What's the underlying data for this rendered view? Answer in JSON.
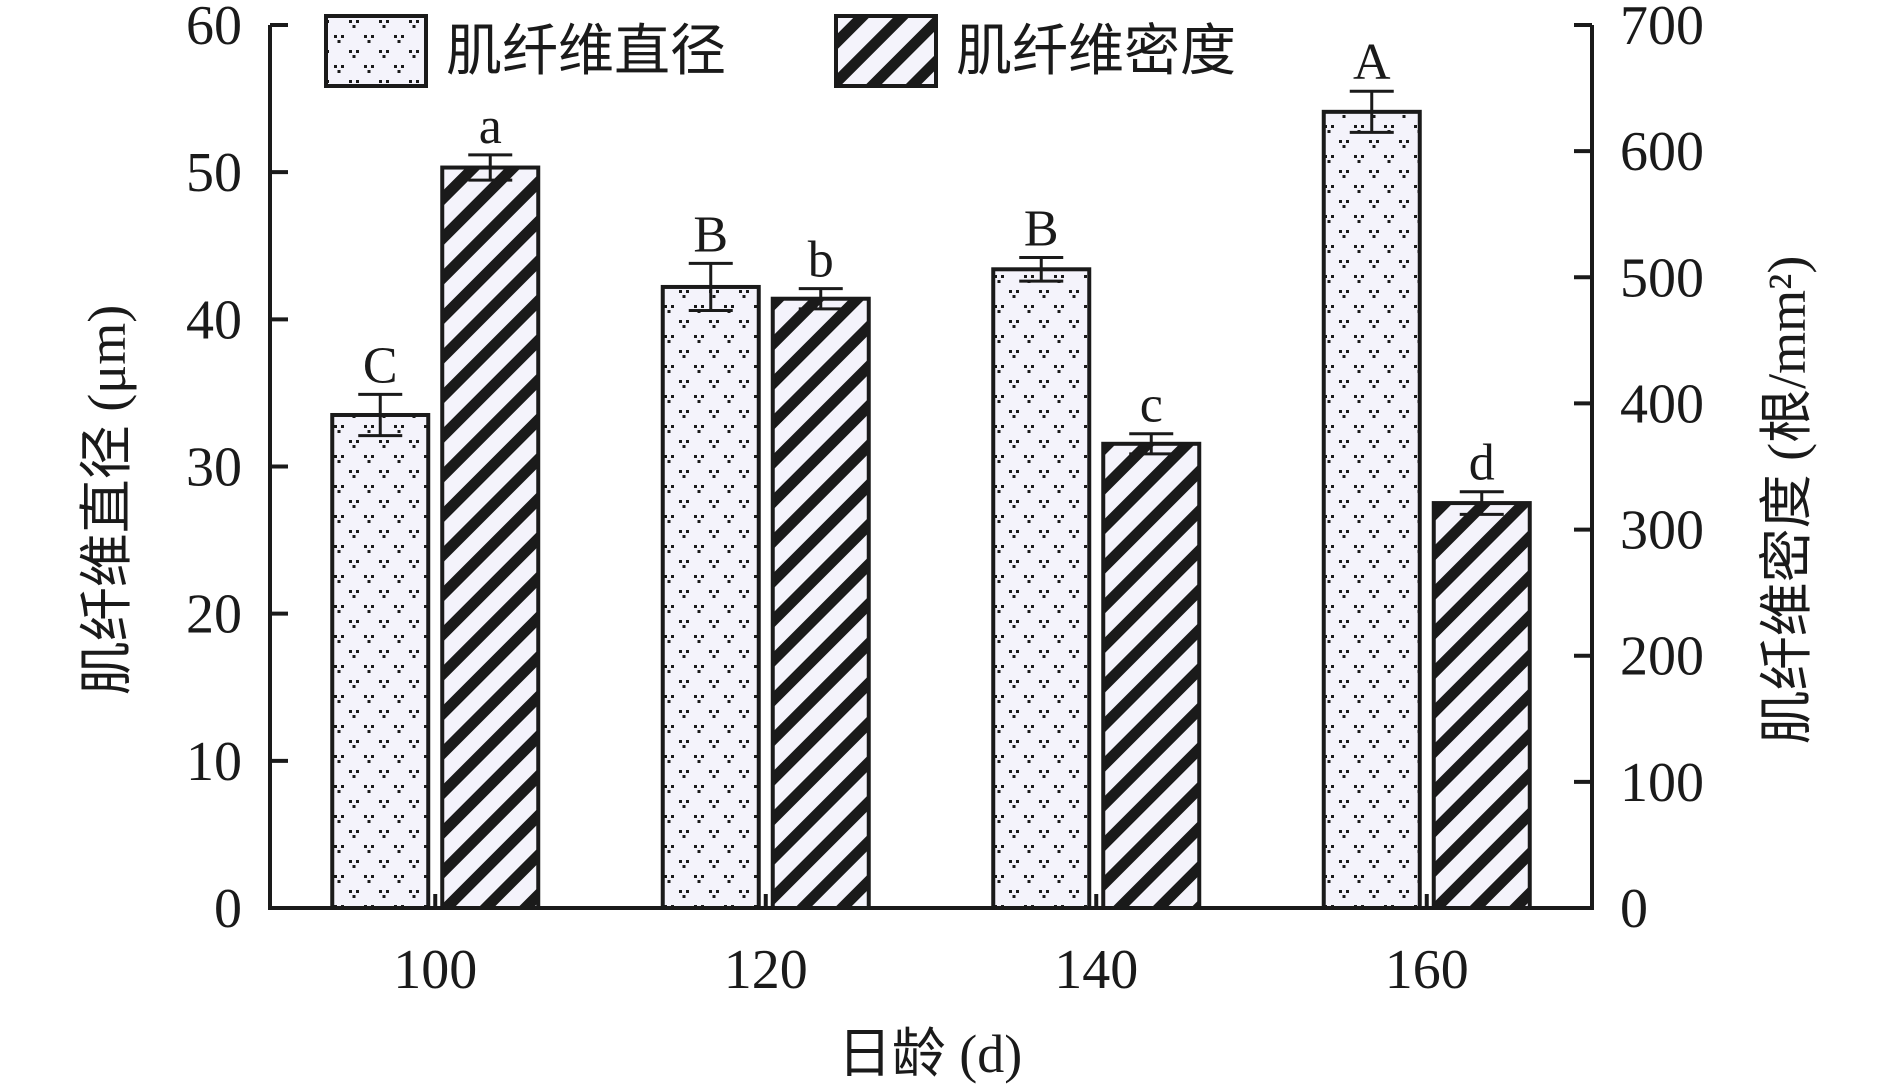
{
  "chart_data": {
    "type": "bar",
    "categories": [
      "100",
      "120",
      "140",
      "160"
    ],
    "xlabel": "日龄 (d)",
    "series": [
      {
        "name": "肌纤维直径",
        "axis": "left",
        "pattern": "dots",
        "values": [
          33.5,
          42.2,
          43.4,
          54.1
        ],
        "errors": [
          1.4,
          1.6,
          0.8,
          1.4
        ],
        "labels": [
          "C",
          "B",
          "B",
          "A"
        ]
      },
      {
        "name": "肌纤维密度",
        "axis": "right",
        "pattern": "stripes",
        "values": [
          587,
          483,
          368,
          321
        ],
        "errors": [
          10,
          8,
          8,
          9
        ],
        "labels": [
          "a",
          "b",
          "c",
          "d"
        ]
      }
    ],
    "y_left": {
      "label": "肌纤维直径 (μm)",
      "lim": [
        0,
        60
      ],
      "ticks": [
        "0",
        "10",
        "20",
        "30",
        "40",
        "50",
        "60"
      ]
    },
    "y_right": {
      "label": "肌纤维密度 (根/mm²)",
      "lim": [
        0,
        700
      ],
      "ticks": [
        "0",
        "100",
        "200",
        "300",
        "400",
        "500",
        "600",
        "700"
      ]
    },
    "legend": "top-left",
    "grid": false,
    "colors": {
      "axis": "#1a1a1a",
      "bar_fill": "#f4f3fb",
      "stripe_fill": "#f4f3fb",
      "pattern": "#1a1a1a"
    }
  }
}
